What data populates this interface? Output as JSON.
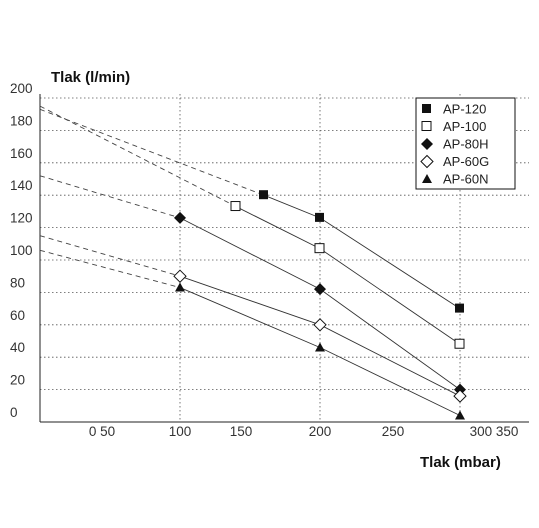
{
  "chart_data": {
    "type": "line",
    "ylabel": "Tlak (l/min)",
    "xlabel": "Tlak (mbar)",
    "ylim": [
      0,
      200
    ],
    "xlim": [
      0,
      350
    ],
    "y_ticks": [
      "200",
      "180",
      "160",
      "140",
      "120",
      "100",
      "80",
      "60",
      "40",
      "20",
      "0"
    ],
    "x_tick_labels": [
      "0 50",
      "100",
      "150",
      "200",
      "250",
      "300 350"
    ],
    "grid": true,
    "legend_position": "top-right",
    "series": [
      {
        "name": "AP-120",
        "marker": "filled-square",
        "x": [
          160,
          200,
          300
        ],
        "y": [
          140,
          126,
          70
        ],
        "extrapolated_from": [
          0,
          193
        ]
      },
      {
        "name": "AP-100",
        "marker": "open-square",
        "x": [
          140,
          200,
          300
        ],
        "y": [
          133,
          107,
          48
        ],
        "extrapolated_from": [
          0,
          195
        ]
      },
      {
        "name": "AP-80H",
        "marker": "filled-diamond",
        "x": [
          100,
          200,
          300
        ],
        "y": [
          126,
          82,
          20
        ],
        "extrapolated_from": [
          0,
          152
        ]
      },
      {
        "name": "AP-60G",
        "marker": "open-diamond",
        "x": [
          100,
          200,
          300
        ],
        "y": [
          90,
          60,
          16
        ],
        "extrapolated_from": [
          0,
          115
        ]
      },
      {
        "name": "AP-60N",
        "marker": "filled-triangle",
        "x": [
          100,
          200,
          300
        ],
        "y": [
          83,
          46,
          4
        ],
        "extrapolated_from": [
          0,
          106
        ]
      }
    ]
  }
}
